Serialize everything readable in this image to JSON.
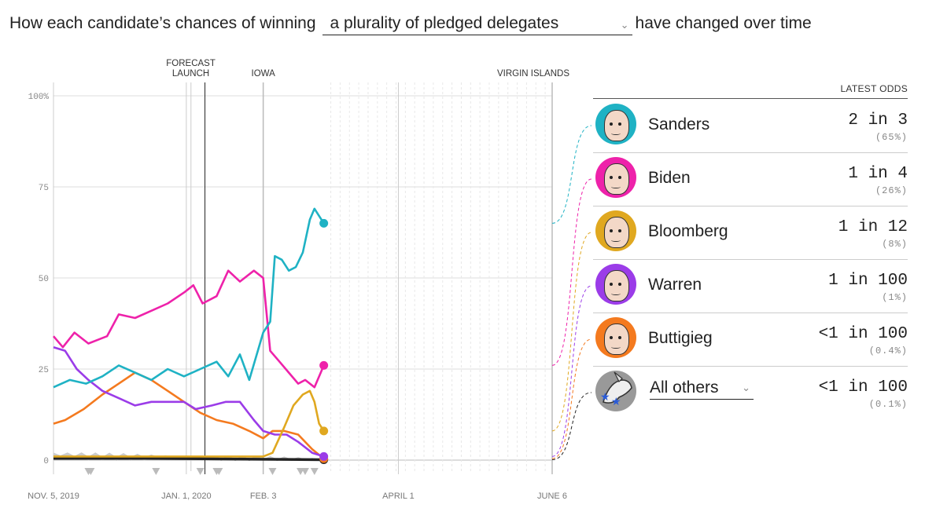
{
  "headline": {
    "prefix": "How each candidate’s chances of winning",
    "selected": "a plurality of pledged delegates",
    "suffix": "have changed over time"
  },
  "odds_panel": {
    "header": "LATEST ODDS",
    "rows": [
      {
        "name": "Sanders",
        "odds": "2 in 3",
        "pct": "(65%)",
        "color": "#1fb2c4"
      },
      {
        "name": "Biden",
        "odds": "1 in 4",
        "pct": "(26%)",
        "color": "#ee22aa"
      },
      {
        "name": "Bloomberg",
        "odds": "1 in 12",
        "pct": "(8%)",
        "color": "#e0a820"
      },
      {
        "name": "Warren",
        "odds": "1 in 100",
        "pct": "(1%)",
        "color": "#9b3ce8"
      },
      {
        "name": "Buttigieg",
        "odds": "<1 in 100",
        "pct": "(0.4%)",
        "color": "#f47a1f"
      },
      {
        "name": "All others",
        "odds": "<1 in 100",
        "pct": "(0.1%)",
        "color": "#333333"
      }
    ]
  },
  "chart_data": {
    "type": "line",
    "title": "",
    "xlabel": "",
    "ylabel": "",
    "x_range": [
      "2019-11-05",
      "2020-06-10"
    ],
    "ylim": [
      0,
      100
    ],
    "y_ticks": [
      "100%",
      "75",
      "50",
      "25",
      "0"
    ],
    "x_ticks": [
      {
        "date": "2019-11-05",
        "label": "NOV. 5, 2019"
      },
      {
        "date": "2020-01-01",
        "label": "JAN. 1, 2020"
      },
      {
        "date": "2020-02-03",
        "label": "FEB. 3"
      },
      {
        "date": "2020-04-01",
        "label": "APRIL 1"
      },
      {
        "date": "2020-06-06",
        "label": "JUNE 6"
      }
    ],
    "events": [
      {
        "date": "2020-01-09",
        "label": [
          "FORECAST",
          "LAUNCH"
        ]
      },
      {
        "date": "2020-02-03",
        "label": [
          "IOWA"
        ]
      },
      {
        "date": "2020-06-06",
        "label": [
          "VIRGIN ISLANDS"
        ]
      }
    ],
    "series": [
      {
        "name": "Sanders",
        "color": "#1fb2c4",
        "final": 65,
        "points": [
          [
            "2019-11-05",
            20
          ],
          [
            "2019-11-12",
            22
          ],
          [
            "2019-11-19",
            21
          ],
          [
            "2019-11-26",
            23
          ],
          [
            "2019-12-03",
            26
          ],
          [
            "2019-12-10",
            24
          ],
          [
            "2019-12-17",
            22
          ],
          [
            "2019-12-24",
            25
          ],
          [
            "2019-12-31",
            23
          ],
          [
            "2020-01-07",
            25
          ],
          [
            "2020-01-14",
            27
          ],
          [
            "2020-01-19",
            23
          ],
          [
            "2020-01-24",
            29
          ],
          [
            "2020-01-28",
            22
          ],
          [
            "2020-02-03",
            35
          ],
          [
            "2020-02-06",
            38
          ],
          [
            "2020-02-08",
            56
          ],
          [
            "2020-02-11",
            55
          ],
          [
            "2020-02-14",
            52
          ],
          [
            "2020-02-17",
            53
          ],
          [
            "2020-02-20",
            57
          ],
          [
            "2020-02-23",
            66
          ],
          [
            "2020-02-25",
            69
          ],
          [
            "2020-02-27",
            67
          ],
          [
            "2020-02-29",
            65
          ]
        ]
      },
      {
        "name": "Biden",
        "color": "#ee22aa",
        "final": 26,
        "points": [
          [
            "2019-11-05",
            34
          ],
          [
            "2019-11-09",
            31
          ],
          [
            "2019-11-14",
            35
          ],
          [
            "2019-11-20",
            32
          ],
          [
            "2019-11-28",
            34
          ],
          [
            "2019-12-03",
            40
          ],
          [
            "2019-12-10",
            39
          ],
          [
            "2019-12-17",
            41
          ],
          [
            "2019-12-24",
            43
          ],
          [
            "2019-12-31",
            46
          ],
          [
            "2020-01-04",
            48
          ],
          [
            "2020-01-08",
            43
          ],
          [
            "2020-01-14",
            45
          ],
          [
            "2020-01-19",
            52
          ],
          [
            "2020-01-24",
            49
          ],
          [
            "2020-01-30",
            52
          ],
          [
            "2020-02-03",
            50
          ],
          [
            "2020-02-06",
            30
          ],
          [
            "2020-02-10",
            27
          ],
          [
            "2020-02-14",
            24
          ],
          [
            "2020-02-18",
            21
          ],
          [
            "2020-02-21",
            22
          ],
          [
            "2020-02-25",
            20
          ],
          [
            "2020-02-29",
            26
          ]
        ]
      },
      {
        "name": "Bloomberg",
        "color": "#e0a820",
        "final": 8,
        "points": [
          [
            "2019-11-05",
            1
          ],
          [
            "2019-12-01",
            1
          ],
          [
            "2020-01-01",
            1
          ],
          [
            "2020-01-24",
            1
          ],
          [
            "2020-02-03",
            1
          ],
          [
            "2020-02-07",
            2
          ],
          [
            "2020-02-12",
            9
          ],
          [
            "2020-02-16",
            15
          ],
          [
            "2020-02-20",
            18
          ],
          [
            "2020-02-23",
            19
          ],
          [
            "2020-02-25",
            16
          ],
          [
            "2020-02-27",
            10
          ],
          [
            "2020-02-29",
            8
          ]
        ]
      },
      {
        "name": "Warren",
        "color": "#9b3ce8",
        "final": 1,
        "points": [
          [
            "2019-11-05",
            31
          ],
          [
            "2019-11-10",
            30
          ],
          [
            "2019-11-15",
            25
          ],
          [
            "2019-11-20",
            22
          ],
          [
            "2019-11-26",
            19
          ],
          [
            "2019-12-03",
            17
          ],
          [
            "2019-12-10",
            15
          ],
          [
            "2019-12-17",
            16
          ],
          [
            "2019-12-24",
            16
          ],
          [
            "2019-12-31",
            16
          ],
          [
            "2020-01-05",
            14
          ],
          [
            "2020-01-12",
            15
          ],
          [
            "2020-01-18",
            16
          ],
          [
            "2020-01-24",
            16
          ],
          [
            "2020-01-30",
            11
          ],
          [
            "2020-02-03",
            8
          ],
          [
            "2020-02-08",
            7
          ],
          [
            "2020-02-13",
            7
          ],
          [
            "2020-02-18",
            5
          ],
          [
            "2020-02-24",
            2
          ],
          [
            "2020-02-29",
            1
          ]
        ]
      },
      {
        "name": "Buttigieg",
        "color": "#f47a1f",
        "final": 0.4,
        "points": [
          [
            "2019-11-05",
            10
          ],
          [
            "2019-11-10",
            11
          ],
          [
            "2019-11-18",
            14
          ],
          [
            "2019-11-26",
            18
          ],
          [
            "2019-12-03",
            21
          ],
          [
            "2019-12-10",
            24
          ],
          [
            "2019-12-17",
            22
          ],
          [
            "2019-12-24",
            19
          ],
          [
            "2019-12-31",
            16
          ],
          [
            "2020-01-07",
            13
          ],
          [
            "2020-01-14",
            11
          ],
          [
            "2020-01-21",
            10
          ],
          [
            "2020-01-28",
            8
          ],
          [
            "2020-02-03",
            6
          ],
          [
            "2020-02-07",
            8
          ],
          [
            "2020-02-12",
            8
          ],
          [
            "2020-02-18",
            7
          ],
          [
            "2020-02-24",
            3
          ],
          [
            "2020-02-29",
            0.4
          ]
        ]
      },
      {
        "name": "All others",
        "color": "#222222",
        "final": 0.1,
        "points": [
          [
            "2019-11-05",
            0.5
          ],
          [
            "2019-12-15",
            0.5
          ],
          [
            "2020-01-20",
            0.3
          ],
          [
            "2020-02-29",
            0.1
          ]
        ]
      }
    ]
  }
}
